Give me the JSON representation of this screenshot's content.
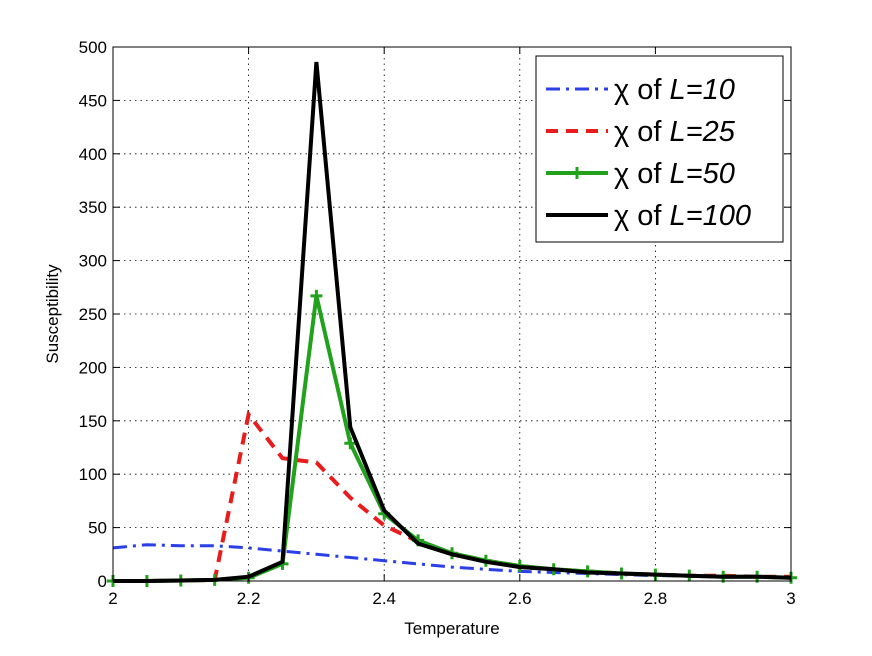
{
  "chart_data": {
    "type": "line",
    "title": "",
    "xlabel": "Temperature",
    "ylabel": "Susceptibility",
    "xlim": [
      2,
      3
    ],
    "ylim": [
      0,
      500
    ],
    "xticks": [
      2,
      2.2,
      2.4,
      2.6,
      2.8,
      3
    ],
    "xtick_labels": [
      "2",
      "2.2",
      "2.4",
      "2.6",
      "2.8",
      "3"
    ],
    "yticks": [
      0,
      50,
      100,
      150,
      200,
      250,
      300,
      350,
      400,
      450,
      500
    ],
    "ytick_labels": [
      "0",
      "50",
      "100",
      "150",
      "200",
      "250",
      "300",
      "350",
      "400",
      "450",
      "500"
    ],
    "grid": true,
    "legend_position": "top-right",
    "x": [
      2.0,
      2.05,
      2.1,
      2.15,
      2.2,
      2.25,
      2.3,
      2.35,
      2.4,
      2.45,
      2.5,
      2.55,
      2.6,
      2.65,
      2.7,
      2.75,
      2.8,
      2.85,
      2.9,
      2.95,
      3.0
    ],
    "series": [
      {
        "name_prefix": "χ of ",
        "name_italic": "L=10",
        "color": "#2a3fe6",
        "style": "dash-dot",
        "marker": "none",
        "values": [
          31,
          34,
          33,
          33,
          31,
          28,
          25,
          22,
          19,
          16,
          13,
          11,
          9,
          8,
          7,
          6,
          5,
          5,
          4,
          4,
          3
        ]
      },
      {
        "name_prefix": "χ of ",
        "name_italic": "L=25",
        "color": "#e81c1c",
        "style": "dashed",
        "marker": "none",
        "values": [
          0,
          0,
          0.5,
          1,
          156,
          115,
          111,
          78,
          52,
          37,
          26,
          19,
          14,
          11,
          9,
          7,
          6,
          5,
          5,
          4,
          4
        ]
      },
      {
        "name_prefix": "χ of ",
        "name_italic": "L=50",
        "color": "#22a11c",
        "style": "solid",
        "marker": "plus",
        "values": [
          0,
          0,
          0.5,
          1,
          3,
          16,
          267,
          129,
          63,
          38,
          26,
          19,
          14,
          11,
          9,
          7,
          6,
          5,
          4,
          4,
          3
        ]
      },
      {
        "name_prefix": "χ of ",
        "name_italic": "L=100",
        "color": "#000000",
        "style": "solid",
        "marker": "none",
        "values": [
          0,
          0,
          0.5,
          1,
          4,
          18,
          486,
          144,
          66,
          35,
          25,
          18,
          13,
          11,
          8,
          7,
          6,
          5,
          4,
          4,
          3
        ]
      }
    ]
  }
}
